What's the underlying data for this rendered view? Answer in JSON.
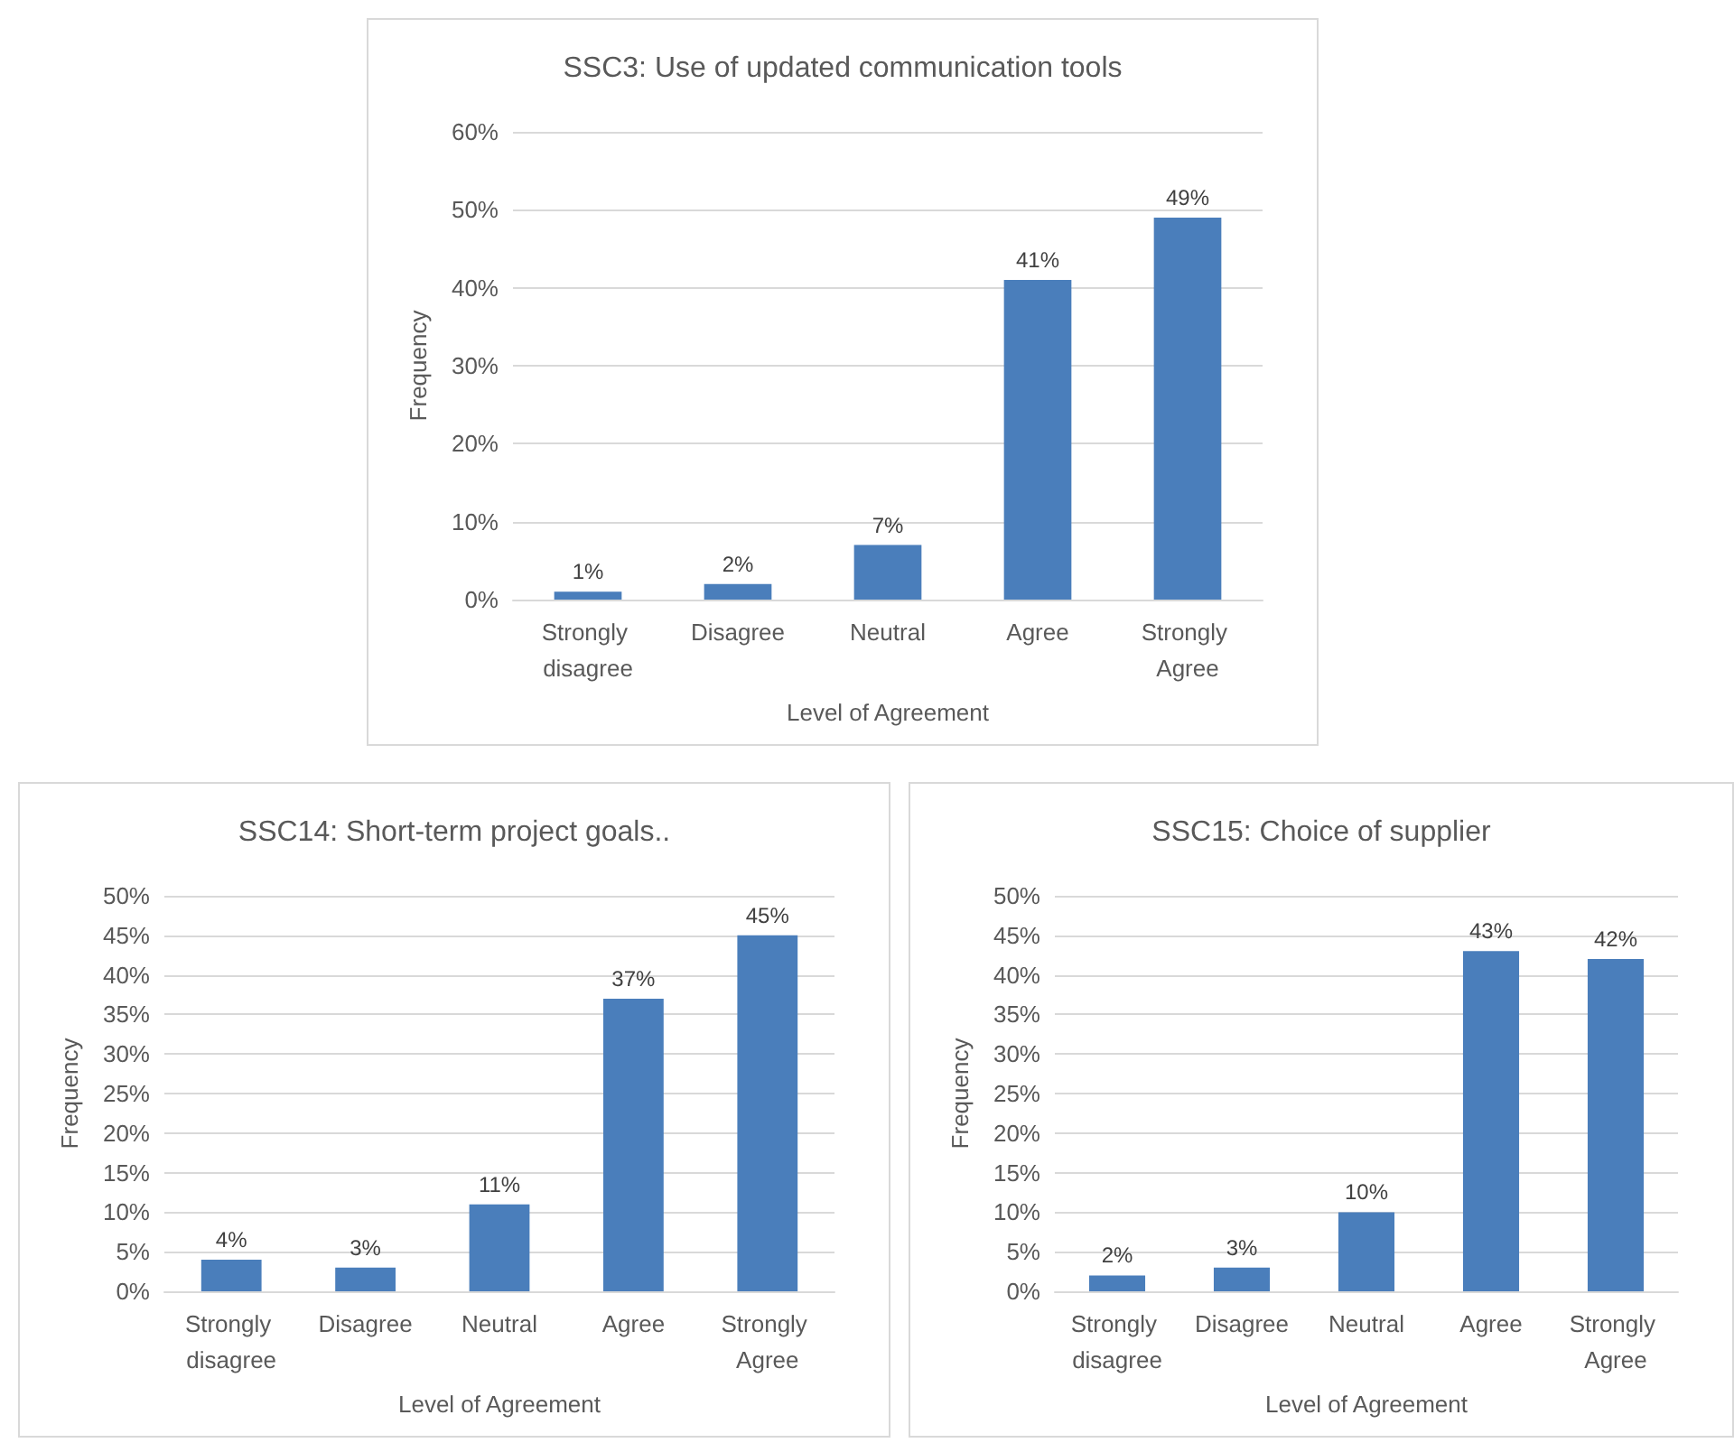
{
  "chart_data": [
    {
      "type": "bar",
      "title": "SSC3: Use of updated communication tools",
      "xlabel": "Level of Agreement",
      "ylabel": "Frequency",
      "categories": [
        "Strongly disagree",
        "Disagree",
        "Neutral",
        "Agree",
        "Strongly Agree"
      ],
      "values": [
        1,
        2,
        7,
        41,
        49
      ],
      "color": "#4a7ebb",
      "data_labels": true,
      "value_labels": [
        "1%",
        "2%",
        "7%",
        "41%",
        "49%"
      ],
      "ylim": [
        0,
        60
      ],
      "yticks": [
        {
          "value": 0,
          "label": "0%"
        },
        {
          "value": 10,
          "label": "10%"
        },
        {
          "value": 20,
          "label": "20%"
        },
        {
          "value": 30,
          "label": "30%"
        },
        {
          "value": 40,
          "label": "40%"
        },
        {
          "value": 50,
          "label": "50%"
        },
        {
          "value": 60,
          "label": "60%"
        }
      ],
      "grid": "y"
    },
    {
      "type": "bar",
      "title": "SSC14: Short-term project goals..",
      "xlabel": "Level of Agreement",
      "ylabel": "Frequency",
      "categories": [
        "Strongly disagree",
        "Disagree",
        "Neutral",
        "Agree",
        "Strongly Agree"
      ],
      "values": [
        4,
        3,
        11,
        37,
        45
      ],
      "color": "#4a7ebb",
      "data_labels": true,
      "value_labels": [
        "4%",
        "3%",
        "11%",
        "37%",
        "45%"
      ],
      "ylim": [
        0,
        50
      ],
      "yticks": [
        {
          "value": 0,
          "label": "0%"
        },
        {
          "value": 5,
          "label": "5%"
        },
        {
          "value": 10,
          "label": "10%"
        },
        {
          "value": 15,
          "label": "15%"
        },
        {
          "value": 20,
          "label": "20%"
        },
        {
          "value": 25,
          "label": "25%"
        },
        {
          "value": 30,
          "label": "30%"
        },
        {
          "value": 35,
          "label": "35%"
        },
        {
          "value": 40,
          "label": "40%"
        },
        {
          "value": 45,
          "label": "45%"
        },
        {
          "value": 50,
          "label": "50%"
        }
      ],
      "grid": "y"
    },
    {
      "type": "bar",
      "title": "SSC15: Choice of supplier",
      "xlabel": "Level of Agreement",
      "ylabel": "Frequency",
      "categories": [
        "Strongly disagree",
        "Disagree",
        "Neutral",
        "Agree",
        "Strongly Agree"
      ],
      "values": [
        2,
        3,
        10,
        43,
        42
      ],
      "color": "#4a7ebb",
      "data_labels": true,
      "value_labels": [
        "2%",
        "3%",
        "10%",
        "43%",
        "42%"
      ],
      "ylim": [
        0,
        50
      ],
      "yticks": [
        {
          "value": 0,
          "label": "0%"
        },
        {
          "value": 5,
          "label": "5%"
        },
        {
          "value": 10,
          "label": "10%"
        },
        {
          "value": 15,
          "label": "15%"
        },
        {
          "value": 20,
          "label": "20%"
        },
        {
          "value": 25,
          "label": "25%"
        },
        {
          "value": 30,
          "label": "30%"
        },
        {
          "value": 35,
          "label": "35%"
        },
        {
          "value": 40,
          "label": "40%"
        },
        {
          "value": 45,
          "label": "45%"
        },
        {
          "value": 50,
          "label": "50%"
        }
      ],
      "grid": "y"
    }
  ]
}
